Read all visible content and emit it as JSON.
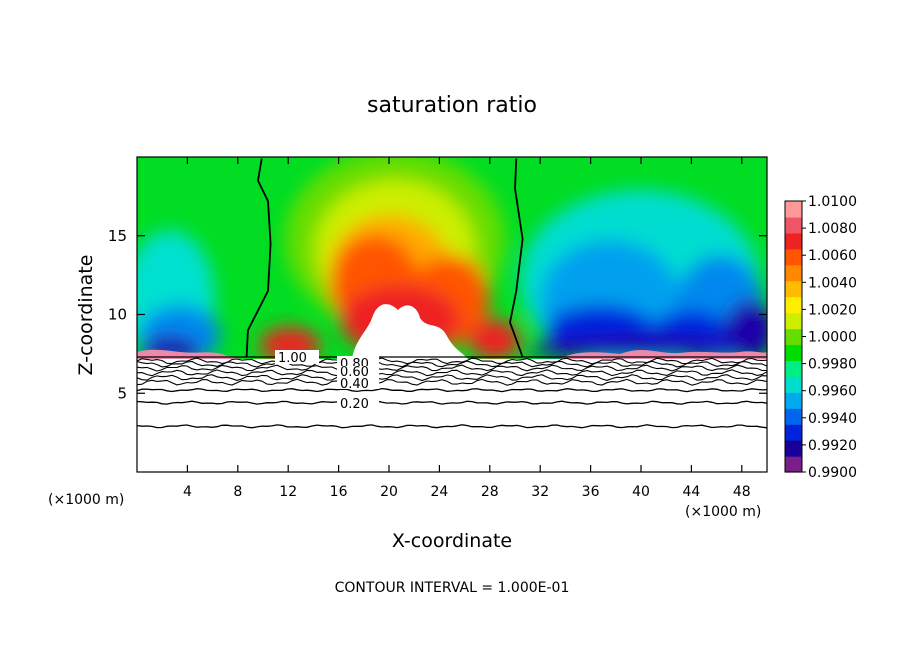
{
  "chart_data": {
    "type": "heatmap",
    "title": "saturation ratio",
    "xlabel": "X-coordinate",
    "ylabel": "Z-coordinate",
    "x_unit_label": "(×1000 m)",
    "x_unit_label_right": "(×1000 m)",
    "xlim": [
      0,
      50
    ],
    "ylim": [
      0,
      20
    ],
    "xticks": [
      "4",
      "8",
      "12",
      "16",
      "20",
      "24",
      "28",
      "32",
      "36",
      "40",
      "44",
      "48"
    ],
    "yticks": [
      "5",
      "10",
      "15"
    ],
    "footer": "CONTOUR INTERVAL = 1.000E-01",
    "colorbar": {
      "min": 0.99,
      "max": 1.01,
      "tick_labels": [
        "1.0100",
        "1.0080",
        "1.0060",
        "1.0040",
        "1.0020",
        "1.0000",
        "0.9980",
        "0.9960",
        "0.9940",
        "0.9920",
        "0.9900"
      ],
      "colors": [
        "#7a1f8a",
        "#1a0099",
        "#0022dd",
        "#0066ee",
        "#00aaee",
        "#00ddcc",
        "#00ee88",
        "#00dd00",
        "#66dd00",
        "#ccee00",
        "#ffee00",
        "#ffbb00",
        "#ff8800",
        "#ff5500",
        "#ee2222",
        "#ee5566",
        "#ff9999"
      ]
    },
    "contour_labels": [
      "1.00",
      "0.80",
      "0.60",
      "0.40",
      "0.20"
    ],
    "fill_boundary_z": 7.3,
    "boundary_contour_1_00": {
      "left": [
        [
          9.9,
          19.9
        ],
        [
          9.6,
          18.5
        ],
        [
          10.4,
          17.2
        ],
        [
          10.6,
          14.5
        ],
        [
          10.4,
          11.5
        ],
        [
          8.8,
          9.0
        ],
        [
          8.7,
          7.3
        ]
      ],
      "right": [
        [
          30.1,
          19.9
        ],
        [
          30.0,
          18.0
        ],
        [
          30.6,
          14.8
        ],
        [
          30.1,
          11.5
        ],
        [
          29.6,
          9.5
        ],
        [
          30.6,
          7.3
        ]
      ]
    }
  }
}
